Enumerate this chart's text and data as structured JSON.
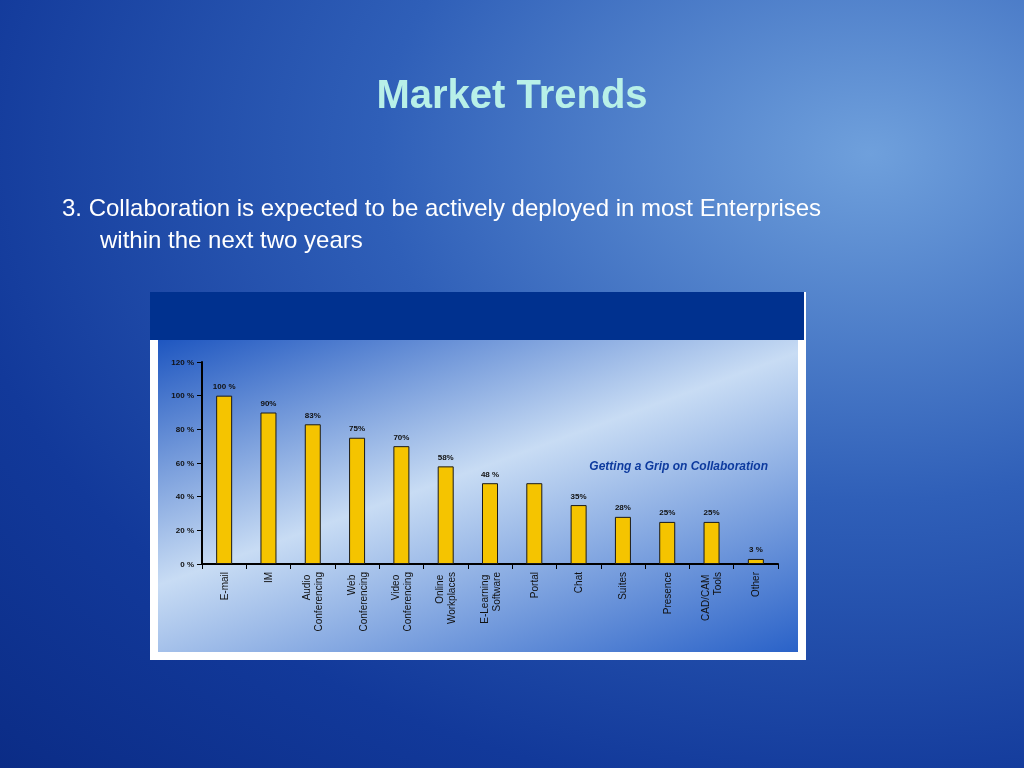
{
  "chart_data": {
    "type": "bar",
    "title": "Market Trends",
    "subtitle": "3.  Collaboration is expected to be actively deployed in most Enterprises within the next two years",
    "categories": [
      "E-mail",
      "IM",
      "Audio Conferencing",
      "Web Conferencing",
      "Video Conferencing",
      "Online Workplaces",
      "E-Learning Software",
      "Portal",
      "Chat",
      "Suites",
      "Presence",
      "CAD/CAM Tools",
      "Other"
    ],
    "values": [
      100,
      90,
      83,
      75,
      70,
      58,
      48,
      48,
      35,
      28,
      25,
      25,
      3
    ],
    "value_labels": [
      "100 %",
      "90%",
      "83%",
      "75%",
      "70%",
      "58%",
      "48 %",
      null,
      "35%",
      "28%",
      "25%",
      "25%",
      "3 %"
    ],
    "color": "#f5c400",
    "ylim": [
      0,
      120
    ],
    "yticks": [
      {
        "value": 0,
        "label": "0 %"
      },
      {
        "value": 20,
        "label": "20 %"
      },
      {
        "value": 40,
        "label": "40 %"
      },
      {
        "value": 60,
        "label": "60 %"
      },
      {
        "value": 80,
        "label": "80 %"
      },
      {
        "value": 100,
        "label": "100 %"
      },
      {
        "value": 120,
        "label": "120 %"
      }
    ],
    "annotations": [
      "Getting a Grip on Collaboration"
    ],
    "grid": false
  }
}
